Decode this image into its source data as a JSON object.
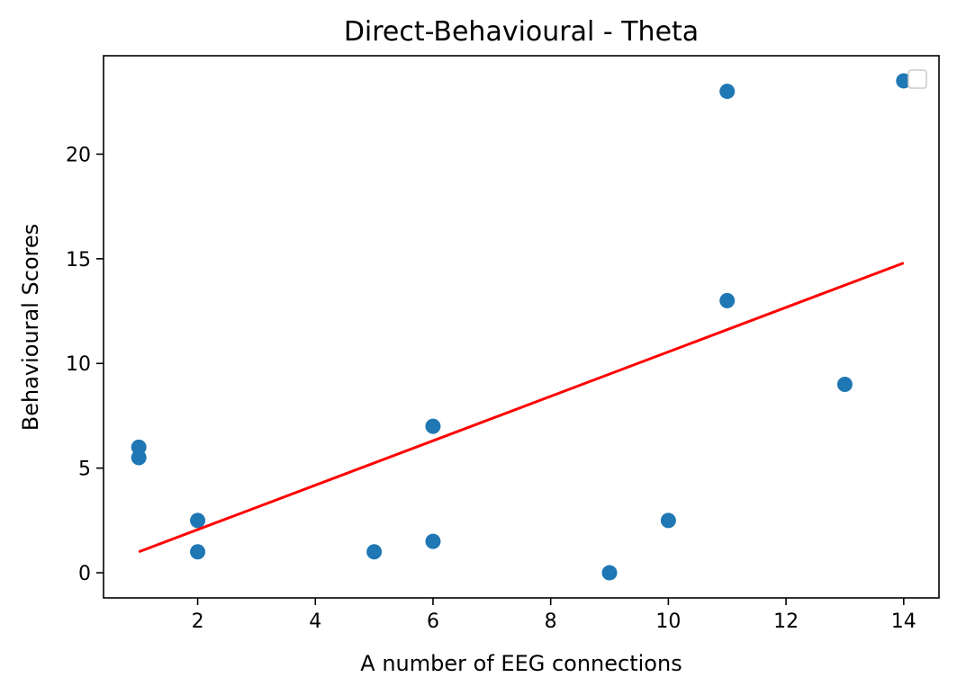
{
  "chart_data": {
    "type": "scatter",
    "title": "Direct-Behavioural - Theta",
    "xlabel": "A number of EEG connections",
    "ylabel": "Behavioural Scores",
    "xlim": [
      0.4,
      14.6
    ],
    "ylim": [
      -1.2,
      24.7
    ],
    "xticks": [
      2,
      4,
      6,
      8,
      10,
      12,
      14
    ],
    "yticks": [
      0,
      5,
      10,
      15,
      20
    ],
    "grid": false,
    "legend": {
      "placement": "top-right",
      "entries": []
    },
    "series": [
      {
        "type": "scatter",
        "color": "#1f77b4",
        "points": [
          {
            "x": 1,
            "y": 6
          },
          {
            "x": 1,
            "y": 5.5
          },
          {
            "x": 2,
            "y": 2.5
          },
          {
            "x": 2,
            "y": 1
          },
          {
            "x": 5,
            "y": 1
          },
          {
            "x": 6,
            "y": 7
          },
          {
            "x": 6,
            "y": 1.5
          },
          {
            "x": 9,
            "y": 0
          },
          {
            "x": 10,
            "y": 2.5
          },
          {
            "x": 11,
            "y": 23
          },
          {
            "x": 11,
            "y": 13
          },
          {
            "x": 13,
            "y": 9
          },
          {
            "x": 14,
            "y": 23.5
          }
        ]
      },
      {
        "type": "line",
        "color": "#ff0000",
        "points": [
          {
            "x": 1,
            "y": 1.0
          },
          {
            "x": 14,
            "y": 14.8
          }
        ]
      }
    ]
  }
}
